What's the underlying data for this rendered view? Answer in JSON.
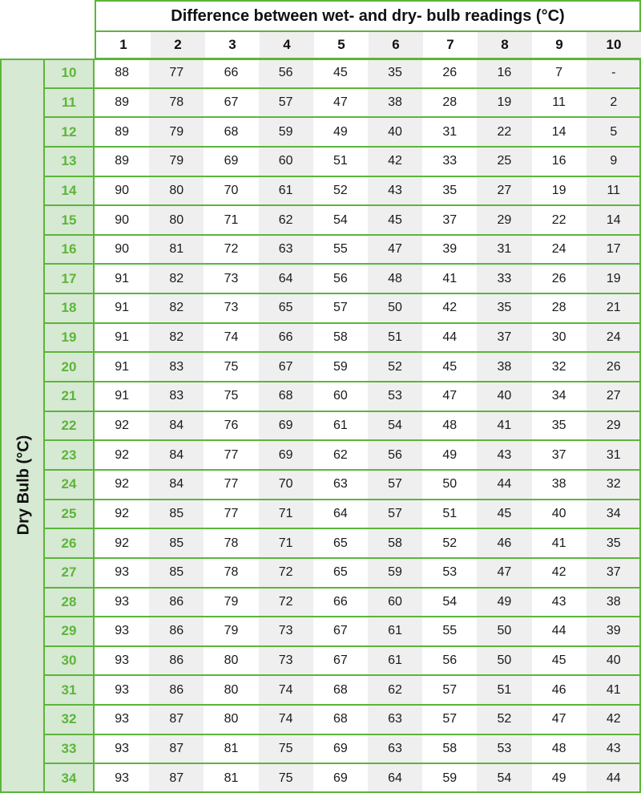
{
  "table": {
    "title": "Difference between wet- and dry- bulb readings (°C)",
    "row_axis_label": "Dry Bulb (°C)",
    "column_headers": [
      "1",
      "2",
      "3",
      "4",
      "5",
      "6",
      "7",
      "8",
      "9",
      "10"
    ],
    "rows": [
      {
        "dry_bulb": "10",
        "values": [
          "88",
          "77",
          "66",
          "56",
          "45",
          "35",
          "26",
          "16",
          "7",
          "-"
        ]
      },
      {
        "dry_bulb": "11",
        "values": [
          "89",
          "78",
          "67",
          "57",
          "47",
          "38",
          "28",
          "19",
          "11",
          "2"
        ]
      },
      {
        "dry_bulb": "12",
        "values": [
          "89",
          "79",
          "68",
          "59",
          "49",
          "40",
          "31",
          "22",
          "14",
          "5"
        ]
      },
      {
        "dry_bulb": "13",
        "values": [
          "89",
          "79",
          "69",
          "60",
          "51",
          "42",
          "33",
          "25",
          "16",
          "9"
        ]
      },
      {
        "dry_bulb": "14",
        "values": [
          "90",
          "80",
          "70",
          "61",
          "52",
          "43",
          "35",
          "27",
          "19",
          "11"
        ]
      },
      {
        "dry_bulb": "15",
        "values": [
          "90",
          "80",
          "71",
          "62",
          "54",
          "45",
          "37",
          "29",
          "22",
          "14"
        ]
      },
      {
        "dry_bulb": "16",
        "values": [
          "90",
          "81",
          "72",
          "63",
          "55",
          "47",
          "39",
          "31",
          "24",
          "17"
        ]
      },
      {
        "dry_bulb": "17",
        "values": [
          "91",
          "82",
          "73",
          "64",
          "56",
          "48",
          "41",
          "33",
          "26",
          "19"
        ]
      },
      {
        "dry_bulb": "18",
        "values": [
          "91",
          "82",
          "73",
          "65",
          "57",
          "50",
          "42",
          "35",
          "28",
          "21"
        ]
      },
      {
        "dry_bulb": "19",
        "values": [
          "91",
          "82",
          "74",
          "66",
          "58",
          "51",
          "44",
          "37",
          "30",
          "24"
        ]
      },
      {
        "dry_bulb": "20",
        "values": [
          "91",
          "83",
          "75",
          "67",
          "59",
          "52",
          "45",
          "38",
          "32",
          "26"
        ]
      },
      {
        "dry_bulb": "21",
        "values": [
          "91",
          "83",
          "75",
          "68",
          "60",
          "53",
          "47",
          "40",
          "34",
          "27"
        ]
      },
      {
        "dry_bulb": "22",
        "values": [
          "92",
          "84",
          "76",
          "69",
          "61",
          "54",
          "48",
          "41",
          "35",
          "29"
        ]
      },
      {
        "dry_bulb": "23",
        "values": [
          "92",
          "84",
          "77",
          "69",
          "62",
          "56",
          "49",
          "43",
          "37",
          "31"
        ]
      },
      {
        "dry_bulb": "24",
        "values": [
          "92",
          "84",
          "77",
          "70",
          "63",
          "57",
          "50",
          "44",
          "38",
          "32"
        ]
      },
      {
        "dry_bulb": "25",
        "values": [
          "92",
          "85",
          "77",
          "71",
          "64",
          "57",
          "51",
          "45",
          "40",
          "34"
        ]
      },
      {
        "dry_bulb": "26",
        "values": [
          "92",
          "85",
          "78",
          "71",
          "65",
          "58",
          "52",
          "46",
          "41",
          "35"
        ]
      },
      {
        "dry_bulb": "27",
        "values": [
          "93",
          "85",
          "78",
          "72",
          "65",
          "59",
          "53",
          "47",
          "42",
          "37"
        ]
      },
      {
        "dry_bulb": "28",
        "values": [
          "93",
          "86",
          "79",
          "72",
          "66",
          "60",
          "54",
          "49",
          "43",
          "38"
        ]
      },
      {
        "dry_bulb": "29",
        "values": [
          "93",
          "86",
          "79",
          "73",
          "67",
          "61",
          "55",
          "50",
          "44",
          "39"
        ]
      },
      {
        "dry_bulb": "30",
        "values": [
          "93",
          "86",
          "80",
          "73",
          "67",
          "61",
          "56",
          "50",
          "45",
          "40"
        ]
      },
      {
        "dry_bulb": "31",
        "values": [
          "93",
          "86",
          "80",
          "74",
          "68",
          "62",
          "57",
          "51",
          "46",
          "41"
        ]
      },
      {
        "dry_bulb": "32",
        "values": [
          "93",
          "87",
          "80",
          "74",
          "68",
          "63",
          "57",
          "52",
          "47",
          "42"
        ]
      },
      {
        "dry_bulb": "33",
        "values": [
          "93",
          "87",
          "81",
          "75",
          "69",
          "63",
          "58",
          "53",
          "48",
          "43"
        ]
      },
      {
        "dry_bulb": "34",
        "values": [
          "93",
          "87",
          "81",
          "75",
          "69",
          "64",
          "59",
          "54",
          "49",
          "44"
        ]
      }
    ]
  },
  "colors": {
    "accent_green": "#5cb53a",
    "header_fill": "#d6e9d2",
    "alt_column_fill": "#efefef"
  }
}
